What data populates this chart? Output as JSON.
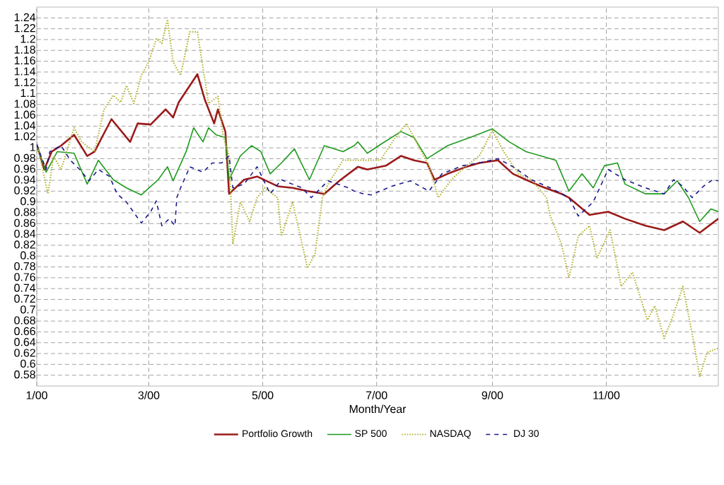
{
  "chart_data": {
    "type": "line",
    "xlabel": "Month/Year",
    "xlim": [
      "2000-01-01",
      "2000-12-31"
    ],
    "xticks": [
      {
        "value": "2000-01-01",
        "label": "1/00"
      },
      {
        "value": "2000-03-01",
        "label": "3/00"
      },
      {
        "value": "2000-05-01",
        "label": "5/00"
      },
      {
        "value": "2000-07-01",
        "label": "7/00"
      },
      {
        "value": "2000-09-01",
        "label": "9/00"
      },
      {
        "value": "2000-11-01",
        "label": "11/00"
      }
    ],
    "ylim": [
      0.56,
      1.26
    ],
    "yticks": [
      0.58,
      0.6,
      0.62,
      0.64,
      0.66,
      0.68,
      0.7,
      0.72,
      0.74,
      0.76,
      0.78,
      0.8,
      0.82,
      0.84,
      0.86,
      0.88,
      0.9,
      0.92,
      0.94,
      0.96,
      0.98,
      1,
      1.02,
      1.04,
      1.06,
      1.08,
      1.1,
      1.12,
      1.14,
      1.16,
      1.18,
      1.2,
      1.22,
      1.24
    ],
    "grid": true,
    "legend": "bottom",
    "marker": "none",
    "series": [
      {
        "name": "Portfolio Growth",
        "color": "#9b1b1b",
        "line_style": "solid",
        "x": [
          "2000-01-01",
          "2000-01-05",
          "2000-01-09",
          "2000-01-14",
          "2000-01-21",
          "2000-01-28",
          "2000-02-01",
          "2000-02-05",
          "2000-02-10",
          "2000-02-15",
          "2000-02-20",
          "2000-02-24",
          "2000-03-02",
          "2000-03-10",
          "2000-03-14",
          "2000-03-17",
          "2000-03-27",
          "2000-03-31",
          "2000-04-05",
          "2000-04-07",
          "2000-04-11",
          "2000-04-13",
          "2000-04-21",
          "2000-04-28",
          "2000-05-09",
          "2000-05-17",
          "2000-05-25",
          "2000-06-03",
          "2000-06-11",
          "2000-06-21",
          "2000-06-26",
          "2000-07-06",
          "2000-07-14",
          "2000-07-21",
          "2000-07-28",
          "2000-08-01",
          "2000-08-08",
          "2000-08-18",
          "2000-08-25",
          "2000-09-04",
          "2000-09-12",
          "2000-09-19",
          "2000-09-27",
          "2000-10-08",
          "2000-10-12",
          "2000-10-23",
          "2000-11-02",
          "2000-11-11",
          "2000-11-22",
          "2000-12-02",
          "2000-12-12",
          "2000-12-21",
          "2000-12-31"
        ],
        "values": [
          1.006,
          0.96,
          0.993,
          1.004,
          1.024,
          0.985,
          0.993,
          1.02,
          1.053,
          1.032,
          1.011,
          1.045,
          1.043,
          1.071,
          1.056,
          1.084,
          1.136,
          1.089,
          1.045,
          1.071,
          1.03,
          0.915,
          0.941,
          0.947,
          0.929,
          0.926,
          0.92,
          0.915,
          0.939,
          0.965,
          0.96,
          0.967,
          0.985,
          0.977,
          0.972,
          0.941,
          0.952,
          0.965,
          0.972,
          0.977,
          0.952,
          0.941,
          0.929,
          0.915,
          0.908,
          0.876,
          0.882,
          0.869,
          0.856,
          0.848,
          0.864,
          0.843,
          0.869
        ]
      },
      {
        "name": "SP 500",
        "color": "#1e9a1e",
        "line_style": "solid",
        "x": [
          "2000-01-01",
          "2000-01-06",
          "2000-01-12",
          "2000-01-21",
          "2000-01-28",
          "2000-02-03",
          "2000-02-11",
          "2000-02-18",
          "2000-02-26",
          "2000-03-06",
          "2000-03-11",
          "2000-03-14",
          "2000-03-21",
          "2000-03-25",
          "2000-03-30",
          "2000-04-02",
          "2000-04-06",
          "2000-04-11",
          "2000-04-13",
          "2000-04-19",
          "2000-04-25",
          "2000-04-30",
          "2000-05-05",
          "2000-05-11",
          "2000-05-18",
          "2000-05-26",
          "2000-06-03",
          "2000-06-13",
          "2000-06-19",
          "2000-06-21",
          "2000-06-26",
          "2000-07-03",
          "2000-07-14",
          "2000-07-21",
          "2000-07-28",
          "2000-08-08",
          "2000-08-20",
          "2000-09-01",
          "2000-09-10",
          "2000-09-19",
          "2000-09-27",
          "2000-10-05",
          "2000-10-12",
          "2000-10-19",
          "2000-10-25",
          "2000-10-31",
          "2000-11-07",
          "2000-11-11",
          "2000-11-22",
          "2000-12-02",
          "2000-12-09",
          "2000-12-15",
          "2000-12-21",
          "2000-12-27",
          "2000-12-31"
        ],
        "values": [
          1.006,
          0.955,
          0.993,
          0.99,
          0.933,
          0.977,
          0.941,
          0.926,
          0.913,
          0.941,
          0.965,
          0.939,
          0.993,
          1.037,
          1.011,
          1.037,
          1.024,
          1.019,
          0.941,
          0.985,
          1.004,
          0.993,
          0.952,
          0.972,
          0.998,
          0.941,
          1.004,
          0.993,
          1.004,
          1.011,
          0.99,
          1.006,
          1.03,
          1.019,
          0.98,
          1.004,
          1.019,
          1.035,
          1.011,
          0.993,
          0.985,
          0.977,
          0.92,
          0.952,
          0.926,
          0.967,
          0.972,
          0.933,
          0.915,
          0.915,
          0.939,
          0.908,
          0.864,
          0.887,
          0.882
        ]
      },
      {
        "name": "NASDAQ",
        "color": "#b5b53a",
        "line_style": "dotted",
        "x": [
          "2000-01-01",
          "2000-01-07",
          "2000-01-10",
          "2000-01-14",
          "2000-01-21",
          "2000-01-25",
          "2000-02-01",
          "2000-02-06",
          "2000-02-11",
          "2000-02-15",
          "2000-02-18",
          "2000-02-22",
          "2000-02-26",
          "2000-03-01",
          "2000-03-05",
          "2000-03-08",
          "2000-03-11",
          "2000-03-14",
          "2000-03-18",
          "2000-03-23",
          "2000-03-27",
          "2000-04-02",
          "2000-04-07",
          "2000-04-10",
          "2000-04-13",
          "2000-04-15",
          "2000-04-19",
          "2000-04-24",
          "2000-04-28",
          "2000-05-02",
          "2000-05-09",
          "2000-05-11",
          "2000-05-17",
          "2000-05-25",
          "2000-05-29",
          "2000-06-02",
          "2000-06-05",
          "2000-06-13",
          "2000-06-21",
          "2000-07-03",
          "2000-07-11",
          "2000-07-17",
          "2000-07-21",
          "2000-07-29",
          "2000-08-03",
          "2000-08-10",
          "2000-08-18",
          "2000-08-25",
          "2000-09-01",
          "2000-09-07",
          "2000-09-15",
          "2000-09-22",
          "2000-09-30",
          "2000-10-02",
          "2000-10-08",
          "2000-10-12",
          "2000-10-17",
          "2000-10-23",
          "2000-10-27",
          "2000-11-03",
          "2000-11-09",
          "2000-11-15",
          "2000-11-23",
          "2000-11-27",
          "2000-12-02",
          "2000-12-07",
          "2000-12-12",
          "2000-12-17",
          "2000-12-21",
          "2000-12-25",
          "2000-12-31"
        ],
        "values": [
          1.01,
          0.915,
          0.985,
          0.96,
          1.037,
          1.011,
          0.993,
          1.071,
          1.097,
          1.084,
          1.115,
          1.082,
          1.134,
          1.159,
          1.201,
          1.193,
          1.237,
          1.159,
          1.134,
          1.214,
          1.214,
          1.082,
          1.095,
          1.019,
          0.985,
          0.822,
          0.9,
          0.864,
          0.908,
          0.926,
          0.908,
          0.837,
          0.9,
          0.778,
          0.804,
          0.908,
          0.933,
          0.977,
          0.977,
          0.977,
          1.019,
          1.045,
          1.019,
          0.967,
          0.908,
          0.941,
          0.967,
          0.985,
          1.032,
          0.993,
          0.952,
          0.941,
          0.908,
          0.874,
          0.822,
          0.76,
          0.837,
          0.856,
          0.796,
          0.848,
          0.744,
          0.77,
          0.682,
          0.708,
          0.648,
          0.692,
          0.744,
          0.656,
          0.578,
          0.622,
          0.63
        ]
      },
      {
        "name": "DJ 30",
        "color": "#1a1a8c",
        "line_style": "dashed",
        "x": [
          "2000-01-01",
          "2000-01-06",
          "2000-01-08",
          "2000-01-14",
          "2000-01-19",
          "2000-01-24",
          "2000-01-29",
          "2000-02-03",
          "2000-02-09",
          "2000-02-13",
          "2000-02-18",
          "2000-02-26",
          "2000-03-02",
          "2000-03-05",
          "2000-03-08",
          "2000-03-12",
          "2000-03-15",
          "2000-03-16",
          "2000-03-18",
          "2000-03-23",
          "2000-03-30",
          "2000-04-04",
          "2000-04-09",
          "2000-04-13",
          "2000-04-15",
          "2000-04-21",
          "2000-04-28",
          "2000-05-05",
          "2000-05-11",
          "2000-05-22",
          "2000-05-27",
          "2000-06-05",
          "2000-06-16",
          "2000-06-19",
          "2000-06-24",
          "2000-06-28",
          "2000-07-09",
          "2000-07-19",
          "2000-07-29",
          "2000-08-05",
          "2000-08-16",
          "2000-08-25",
          "2000-09-04",
          "2000-09-12",
          "2000-09-22",
          "2000-10-02",
          "2000-10-12",
          "2000-10-17",
          "2000-10-25",
          "2000-11-02",
          "2000-11-11",
          "2000-11-22",
          "2000-12-02",
          "2000-12-07",
          "2000-12-12",
          "2000-12-17",
          "2000-12-23",
          "2000-12-28",
          "2000-12-31"
        ],
        "values": [
          1.006,
          0.96,
          0.993,
          1.004,
          0.977,
          0.96,
          0.939,
          0.96,
          0.947,
          0.915,
          0.9,
          0.861,
          0.882,
          0.902,
          0.856,
          0.869,
          0.856,
          0.908,
          0.926,
          0.965,
          0.955,
          0.972,
          0.972,
          0.985,
          0.926,
          0.933,
          0.965,
          0.915,
          0.941,
          0.926,
          0.908,
          0.939,
          0.926,
          0.92,
          0.915,
          0.913,
          0.929,
          0.939,
          0.92,
          0.952,
          0.967,
          0.972,
          0.98,
          0.965,
          0.941,
          0.926,
          0.908,
          0.874,
          0.9,
          0.96,
          0.941,
          0.926,
          0.915,
          0.941,
          0.929,
          0.908,
          0.929,
          0.941,
          0.939
        ]
      }
    ]
  }
}
